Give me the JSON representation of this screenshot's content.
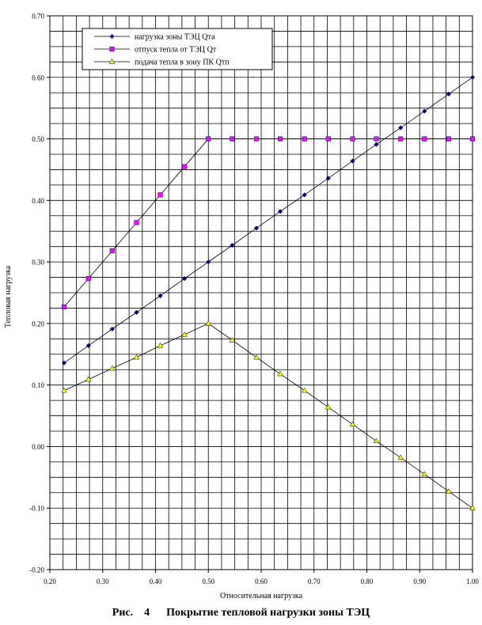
{
  "chart_data": {
    "type": "line",
    "title": "",
    "xlabel": "Относительная нагрузка",
    "ylabel": "Тепловая нагрузка",
    "xlim": [
      0.2,
      1.0
    ],
    "ylim": [
      -0.2,
      0.7
    ],
    "x_ticks": [
      "0.20",
      "0.30",
      "0.40",
      "0.50",
      "0.60",
      "0.70",
      "0.80",
      "0.90",
      "1.00"
    ],
    "y_ticks": [
      "0.70",
      "0.60",
      "0.50",
      "0.40",
      "0.30",
      "0.20",
      "0.10",
      "0.00",
      "-0.10",
      "-0.20"
    ],
    "grid": {
      "horizontal": true,
      "vertical": true
    },
    "legend_position": "top-left",
    "series": [
      {
        "name": "нагрузка зоны ТЭЦ Qта",
        "color": "#000080",
        "marker": "diamond",
        "x": [
          0.227,
          0.273,
          0.318,
          0.364,
          0.409,
          0.455,
          0.5,
          0.545,
          0.591,
          0.636,
          0.682,
          0.727,
          0.773,
          0.818,
          0.864,
          0.909,
          0.955,
          1.0
        ],
        "values": [
          0.136,
          0.164,
          0.191,
          0.218,
          0.245,
          0.273,
          0.3,
          0.327,
          0.355,
          0.382,
          0.409,
          0.436,
          0.464,
          0.491,
          0.518,
          0.545,
          0.573,
          0.6
        ]
      },
      {
        "name": "отпуск тепла от ТЭЦ Qт",
        "color": "#ff00ff",
        "marker": "square",
        "x": [
          0.227,
          0.273,
          0.318,
          0.364,
          0.409,
          0.455,
          0.5,
          0.545,
          0.591,
          0.636,
          0.682,
          0.727,
          0.773,
          0.818,
          0.864,
          0.909,
          0.955,
          1.0
        ],
        "values": [
          0.227,
          0.273,
          0.318,
          0.364,
          0.409,
          0.455,
          0.5,
          0.5,
          0.5,
          0.5,
          0.5,
          0.5,
          0.5,
          0.5,
          0.5,
          0.5,
          0.5,
          0.5
        ]
      },
      {
        "name": "подача тепла в зону ПК Qтп",
        "color": "#ffff00",
        "marker": "triangle",
        "x": [
          0.227,
          0.273,
          0.318,
          0.364,
          0.409,
          0.455,
          0.5,
          0.545,
          0.591,
          0.636,
          0.682,
          0.727,
          0.773,
          0.818,
          0.864,
          0.909,
          0.955,
          1.0
        ],
        "values": [
          0.091,
          0.109,
          0.127,
          0.145,
          0.164,
          0.182,
          0.2,
          0.173,
          0.145,
          0.118,
          0.091,
          0.064,
          0.036,
          0.009,
          -0.018,
          -0.045,
          -0.073,
          -0.1
        ]
      }
    ]
  },
  "caption": {
    "prefix": "Рис.",
    "number": "4",
    "text": "Покрытие тепловой нагрузки зоны ТЭЦ"
  }
}
